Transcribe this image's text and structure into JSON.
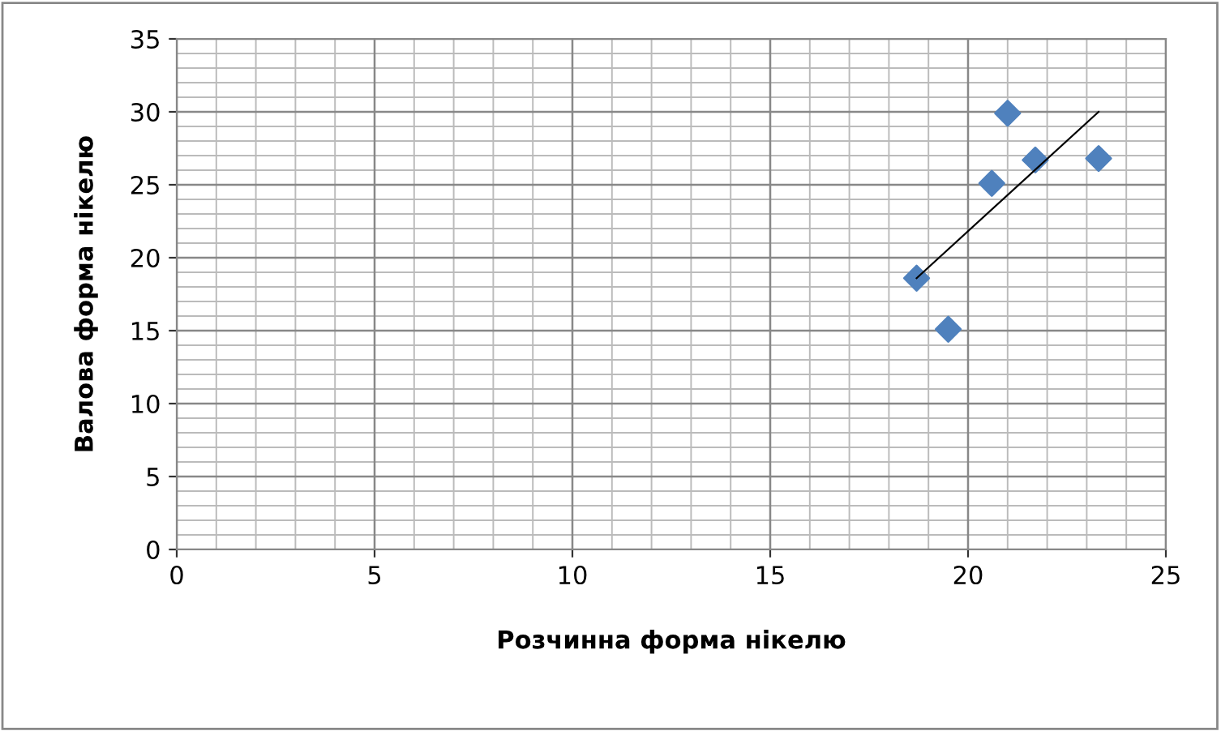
{
  "chart_data": {
    "type": "scatter",
    "xlabel": "Розчинна форма нікелю",
    "ylabel": "Валова форма нікелю",
    "x": [
      18.7,
      19.5,
      20.6,
      21.0,
      21.7,
      23.3
    ],
    "series": [
      {
        "color": "#4f81bd",
        "values": [
          18.6,
          15.1,
          25.1,
          29.9,
          26.7,
          26.8
        ],
        "marker": "diamond"
      },
      {
        "type": "line",
        "color": "#000000",
        "x": [
          18.7,
          23.3
        ],
        "values": [
          18.6,
          30.0
        ],
        "marker": "none",
        "line_style": "solid"
      }
    ],
    "xlim": [
      0,
      25
    ],
    "xticks": [
      0,
      5,
      10,
      15,
      20,
      25
    ],
    "ylim": [
      0,
      35
    ],
    "yticks": [
      0,
      5,
      10,
      15,
      20,
      25,
      30,
      35
    ],
    "grid": true,
    "legend": false
  }
}
